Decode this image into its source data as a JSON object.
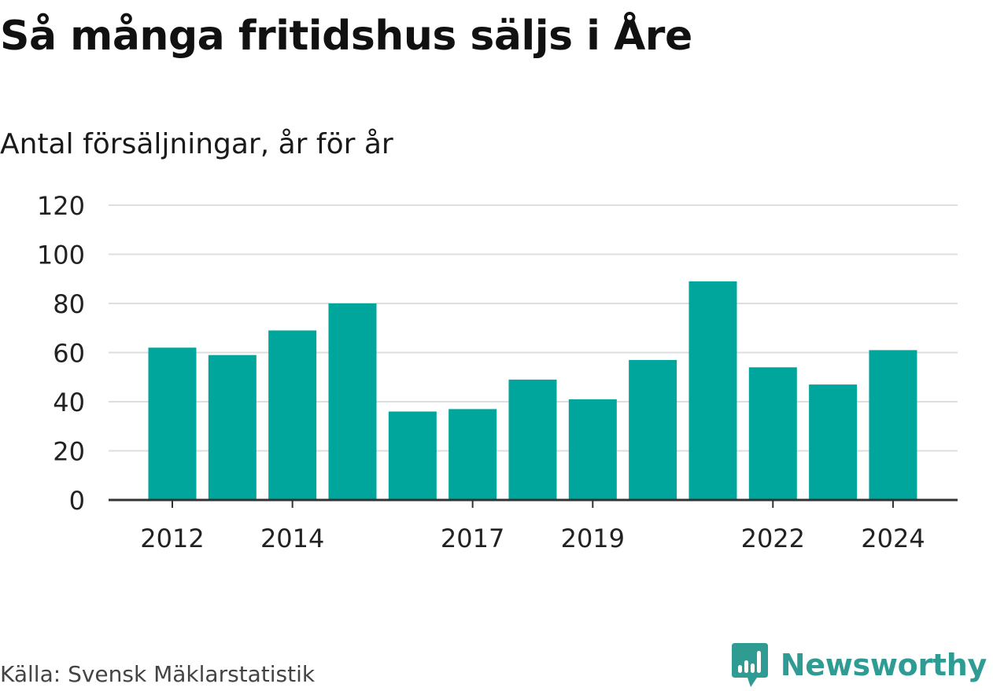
{
  "title": "Så många fritidshus säljs i Åre",
  "subtitle": "Antal försäljningar, år för år",
  "source": "Källa: Svensk Mäklarstatistik",
  "brand": {
    "name": "Newsworthy",
    "icon": "newsworthy-logo-icon",
    "color": "#2f9c94"
  },
  "colors": {
    "bar": "#00a59b",
    "grid": "#dedede",
    "axis": "#333333",
    "text": "#222222"
  },
  "chart_data": {
    "type": "bar",
    "categories": [
      "2012",
      "2013",
      "2014",
      "2015",
      "2016",
      "2017",
      "2018",
      "2019",
      "2020",
      "2021",
      "2022",
      "2023",
      "2024"
    ],
    "values": [
      62,
      59,
      69,
      80,
      36,
      37,
      49,
      41,
      57,
      89,
      54,
      47,
      61
    ],
    "x_tick_labels": [
      "2012",
      "2014",
      "2017",
      "2019",
      "2022",
      "2024"
    ],
    "y_ticks": [
      0,
      20,
      40,
      60,
      80,
      100,
      120
    ],
    "ylim": [
      0,
      120
    ],
    "title": "Så många fritidshus säljs i Åre",
    "subtitle": "Antal försäljningar, år för år",
    "xlabel": "",
    "ylabel": "",
    "grid": true,
    "legend": "none"
  }
}
